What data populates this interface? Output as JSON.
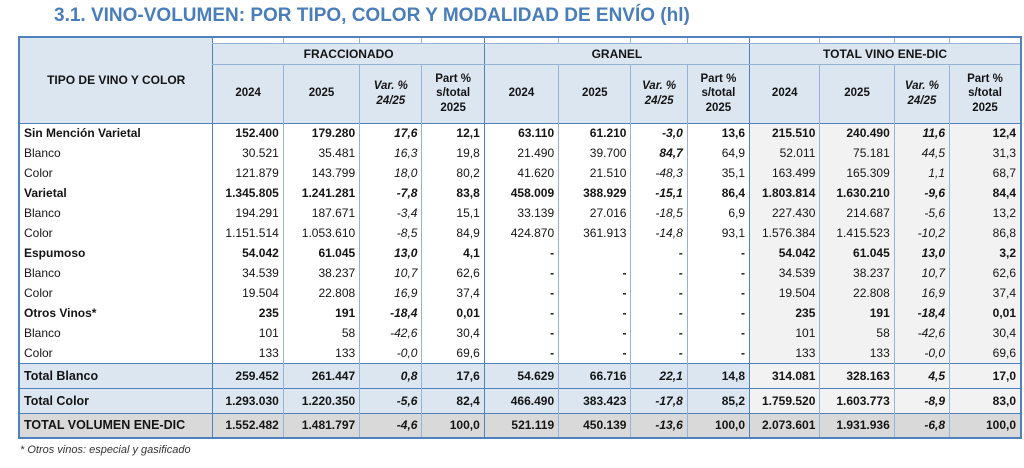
{
  "title": "3.1. VINO-VOLUMEN: POR TIPO, COLOR Y MODALIDAD DE ENVÍO (hl)",
  "footnote": "* Otros vinos: especial y gasificado",
  "colors": {
    "title_blue": "#4a7ebb",
    "border_dark": "#4f81bd",
    "border_light": "#95b3d7",
    "header_bg": "#dce6f1",
    "total_row_bg": "#dce6f1",
    "grand_total_bg": "#d9d9d9",
    "total_section_bg": "#f2f2f2"
  },
  "table": {
    "row_header": "TIPO DE VINO Y COLOR",
    "groups": [
      "FRACCIONADO",
      "GRANEL",
      "TOTAL VINO ENE-DIC"
    ],
    "sub": [
      "2024",
      "2025",
      "Var. %\n24/25",
      "Part %\ns/total\n2025"
    ],
    "rows": [
      {
        "label": "Sin Mención Varietal",
        "style": "section",
        "cells": [
          "152.400",
          "179.280",
          "17,6",
          "12,1",
          "63.110",
          "61.210",
          "-3,0",
          "13,6",
          "215.510",
          "240.490",
          "11,6",
          "12,4"
        ]
      },
      {
        "label": "Blanco",
        "style": "plain",
        "emph": [
          6
        ],
        "cells": [
          "30.521",
          "35.481",
          "16,3",
          "19,8",
          "21.490",
          "39.700",
          "84,7",
          "64,9",
          "52.011",
          "75.181",
          "44,5",
          "31,3"
        ]
      },
      {
        "label": "Color",
        "style": "plain",
        "cells": [
          "121.879",
          "143.799",
          "18,0",
          "80,2",
          "41.620",
          "21.510",
          "-48,3",
          "35,1",
          "163.499",
          "165.309",
          "1,1",
          "68,7"
        ]
      },
      {
        "label": "Varietal",
        "style": "section",
        "cells": [
          "1.345.805",
          "1.241.281",
          "-7,8",
          "83,8",
          "458.009",
          "388.929",
          "-15,1",
          "86,4",
          "1.803.814",
          "1.630.210",
          "-9,6",
          "84,4"
        ]
      },
      {
        "label": "Blanco",
        "style": "plain",
        "cells": [
          "194.291",
          "187.671",
          "-3,4",
          "15,1",
          "33.139",
          "27.016",
          "-18,5",
          "6,9",
          "227.430",
          "214.687",
          "-5,6",
          "13,2"
        ]
      },
      {
        "label": "Color",
        "style": "plain",
        "cells": [
          "1.151.514",
          "1.053.610",
          "-8,5",
          "84,9",
          "424.870",
          "361.913",
          "-14,8",
          "93,1",
          "1.576.384",
          "1.415.523",
          "-10,2",
          "86,8"
        ]
      },
      {
        "label": "Espumoso",
        "style": "section",
        "cells": [
          "54.042",
          "61.045",
          "13,0",
          "4,1",
          "-",
          "",
          "-",
          "-",
          "54.042",
          "61.045",
          "13,0",
          "3,2"
        ]
      },
      {
        "label": "Blanco",
        "style": "plain",
        "cells": [
          "34.539",
          "38.237",
          "10,7",
          "62,6",
          "-",
          "-",
          "-",
          "-",
          "34.539",
          "38.237",
          "10,7",
          "62,6"
        ]
      },
      {
        "label": "Color",
        "style": "plain",
        "cells": [
          "19.504",
          "22.808",
          "16,9",
          "37,4",
          "-",
          "-",
          "-",
          "-",
          "19.504",
          "22.808",
          "16,9",
          "37,4"
        ]
      },
      {
        "label": "Otros Vinos*",
        "style": "section",
        "cells": [
          "235",
          "191",
          "-18,4",
          "0,01",
          "-",
          "-",
          "-",
          "-",
          "235",
          "191",
          "-18,4",
          "0,01"
        ]
      },
      {
        "label": "Blanco",
        "style": "plain",
        "cells": [
          "101",
          "58",
          "-42,6",
          "30,4",
          "-",
          "-",
          "-",
          "-",
          "101",
          "58",
          "-42,6",
          "30,4"
        ]
      },
      {
        "label": "Color",
        "style": "plain",
        "cells": [
          "133",
          "133",
          "-0,0",
          "69,6",
          "-",
          "-",
          "-",
          "-",
          "133",
          "133",
          "-0,0",
          "69,6"
        ]
      },
      {
        "label": "Total Blanco",
        "style": "total",
        "cells": [
          "259.452",
          "261.447",
          "0,8",
          "17,6",
          "54.629",
          "66.716",
          "22,1",
          "14,8",
          "314.081",
          "328.163",
          "4,5",
          "17,0"
        ]
      },
      {
        "label": "Total Color",
        "style": "total",
        "cells": [
          "1.293.030",
          "1.220.350",
          "-5,6",
          "82,4",
          "466.490",
          "383.423",
          "-17,8",
          "85,2",
          "1.759.520",
          "1.603.773",
          "-8,9",
          "83,0"
        ]
      },
      {
        "label": "TOTAL VOLUMEN ENE-DIC",
        "style": "grand",
        "cells": [
          "1.552.482",
          "1.481.797",
          "-4,6",
          "100,0",
          "521.119",
          "450.139",
          "-13,6",
          "100,0",
          "2.073.601",
          "1.931.936",
          "-6,8",
          "100,0"
        ]
      }
    ]
  }
}
